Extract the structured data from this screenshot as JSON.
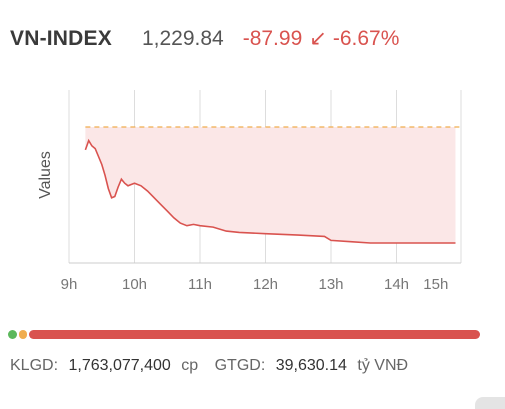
{
  "header": {
    "index_name": "VN-INDEX",
    "index_value": "1,229.84",
    "change": "-87.99",
    "change_icon": "arrow-down-left-icon",
    "change_percent": "-6.67%"
  },
  "colors": {
    "negative": "#d9534f",
    "reference_line": "#f0ad4e",
    "fill": "#fbe7e7",
    "grid": "#dddddd",
    "advance": "#5cb85c",
    "unchanged": "#f0ad4e",
    "decline": "#d9534f"
  },
  "chart_data": {
    "type": "line",
    "ylabel": "Values",
    "xlabel": "",
    "x_ticks": [
      "9h",
      "10h",
      "11h",
      "12h",
      "13h",
      "14h",
      "15h"
    ],
    "x_tick_hours": [
      9,
      10,
      11,
      12,
      13,
      14,
      14.6
    ],
    "reference_line": "dashed",
    "series": [
      {
        "x": [
          9.25,
          9.3,
          9.35,
          9.4,
          9.45,
          9.5,
          9.55,
          9.6,
          9.65,
          9.7,
          9.75,
          9.8,
          9.85,
          9.9,
          9.95,
          10.0,
          10.1,
          10.2,
          10.3,
          10.4,
          10.5,
          10.6,
          10.7,
          10.8,
          10.9,
          11.0,
          11.2,
          11.4,
          11.6,
          12.0,
          12.5,
          12.9,
          13.0,
          13.3,
          13.6,
          14.0,
          14.5,
          14.9
        ],
        "y": [
          0.45,
          0.52,
          0.48,
          0.46,
          0.4,
          0.34,
          0.26,
          0.16,
          0.09,
          0.1,
          0.17,
          0.23,
          0.2,
          0.18,
          0.19,
          0.2,
          0.18,
          0.14,
          0.09,
          0.04,
          -0.01,
          -0.06,
          -0.1,
          -0.12,
          -0.11,
          -0.12,
          -0.13,
          -0.16,
          -0.17,
          -0.18,
          -0.19,
          -0.2,
          -0.23,
          -0.24,
          -0.25,
          -0.25,
          -0.25,
          -0.25
        ]
      }
    ],
    "grid": "vertical"
  },
  "breadth": {
    "advance_share": 0.02,
    "unchanged_share": 0.015,
    "decline_share": 0.965
  },
  "footer": {
    "klgd_label": "KLGD:",
    "klgd_value": "1,763,077,400",
    "klgd_unit": "cp",
    "gtgd_label": "GTGD:",
    "gtgd_value": "39,630.14",
    "gtgd_unit": "tỷ VNĐ"
  }
}
